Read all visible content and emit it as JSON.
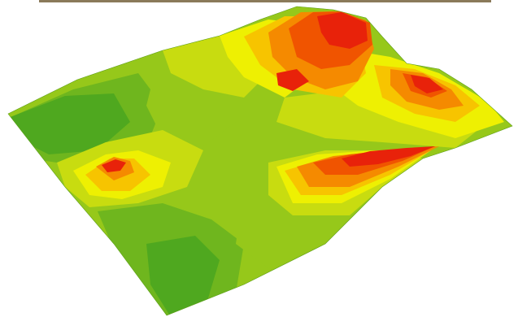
{
  "image": {
    "subject": "elevation-terrain-render",
    "palette": {
      "low_dark": "#4fa81f",
      "low": "#6fb61e",
      "mid_low": "#96c81a",
      "mid": "#c8dc10",
      "high_mid": "#eef002",
      "yellow_orange": "#f7c400",
      "orange": "#f58a00",
      "red_orange": "#f05400",
      "red": "#e8220a",
      "strip": "#8a7a5a"
    }
  }
}
